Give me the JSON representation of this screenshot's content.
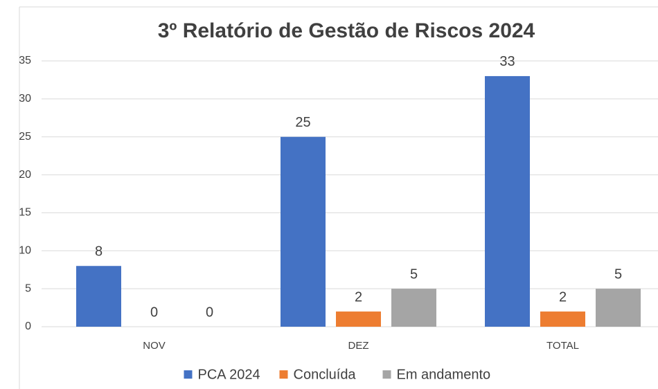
{
  "chart_data": {
    "type": "bar",
    "title": "3º Relatório de Gestão de Riscos 2024",
    "categories": [
      "NOV",
      "DEZ",
      "TOTAL"
    ],
    "series": [
      {
        "name": "PCA 2024",
        "color": "#4472c4",
        "values": [
          8,
          25,
          33
        ]
      },
      {
        "name": "Concluída",
        "color": "#ed7d31",
        "values": [
          0,
          2,
          2
        ]
      },
      {
        "name": "Em andamento",
        "color": "#a5a5a5",
        "values": [
          0,
          5,
          5
        ]
      }
    ],
    "ylim": [
      0,
      35
    ],
    "yticks": [
      0,
      5,
      10,
      15,
      20,
      25,
      30,
      35
    ],
    "grid": true,
    "legend": "bottom"
  }
}
